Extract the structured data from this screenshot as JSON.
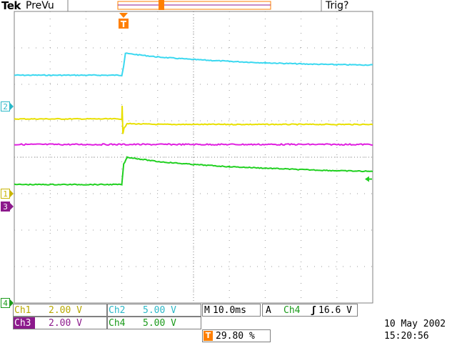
{
  "header": {
    "brand": "Tek",
    "mode": "PreVu",
    "trigger_status": "Trig?"
  },
  "trigger_marker": {
    "label": "T"
  },
  "channel_markers": [
    {
      "name": "channel-2-marker",
      "label": "2",
      "color": "#2ab8c8",
      "y_div": 2.6
    },
    {
      "name": "channel-1-marker",
      "label": "1",
      "color": "#c8b400",
      "y_div": 5.0
    },
    {
      "name": "channel-3-marker",
      "label": "3",
      "color": "#8c1a8c",
      "y_div": 5.35
    },
    {
      "name": "channel-4-marker",
      "label": "4",
      "color": "#1a9a1a",
      "y_div": 8.0
    }
  ],
  "readouts": {
    "ch1": {
      "label": "Ch1",
      "value": "2.00 V",
      "color": "#b8a800"
    },
    "ch2": {
      "label": "Ch2",
      "value": "5.00 V",
      "color": "#2ab8c8"
    },
    "ch3": {
      "label": "Ch3",
      "value": "2.00 V",
      "color": "#8c1a8c"
    },
    "ch4": {
      "label": "Ch4",
      "value": "5.00 V",
      "color": "#1a9a1a"
    },
    "timebase_prefix": "M",
    "timebase": "10.0ms",
    "trigger_prefix": "A",
    "trigger_channel": "Ch4",
    "trigger_slope": "ʃ",
    "trigger_level": "16.6 V",
    "trigger_position": "29.80 %"
  },
  "date": "10 May 2002",
  "time": "15:20:56",
  "chart_data": {
    "type": "line",
    "grid": true,
    "x_divisions": 10,
    "y_divisions": 8,
    "trigger_x_div": 3.0,
    "series": [
      {
        "color": "#3ad8f0",
        "points": [
          [
            0,
            1.75
          ],
          [
            3.0,
            1.75
          ],
          [
            3.05,
            1.5
          ],
          [
            3.1,
            1.15
          ],
          [
            4,
            1.25
          ],
          [
            5,
            1.32
          ],
          [
            6,
            1.37
          ],
          [
            7,
            1.41
          ],
          [
            8,
            1.44
          ],
          [
            9,
            1.46
          ],
          [
            10,
            1.47
          ]
        ],
        "noise": 0.012
      },
      {
        "color": "#e8e000",
        "points": [
          [
            0,
            2.95
          ],
          [
            3.0,
            2.95
          ],
          [
            3.01,
            2.6
          ],
          [
            3.03,
            3.35
          ],
          [
            3.06,
            3.2
          ],
          [
            3.15,
            3.08
          ],
          [
            4,
            3.1
          ],
          [
            10,
            3.1
          ]
        ],
        "noise": 0.012
      },
      {
        "color": "#e020e0",
        "points": [
          [
            0,
            3.65
          ],
          [
            10,
            3.65
          ]
        ],
        "noise": 0.018
      },
      {
        "color": "#20d020",
        "points": [
          [
            0,
            4.75
          ],
          [
            3.0,
            4.75
          ],
          [
            3.05,
            4.2
          ],
          [
            3.15,
            4.0
          ],
          [
            4,
            4.12
          ],
          [
            5,
            4.2
          ],
          [
            6,
            4.26
          ],
          [
            7,
            4.3
          ],
          [
            8,
            4.34
          ],
          [
            9,
            4.37
          ],
          [
            10,
            4.39
          ]
        ],
        "noise": 0.012
      }
    ],
    "level_marker": {
      "x_div": 9.9,
      "y_div": 4.6,
      "color": "#20d020"
    }
  }
}
